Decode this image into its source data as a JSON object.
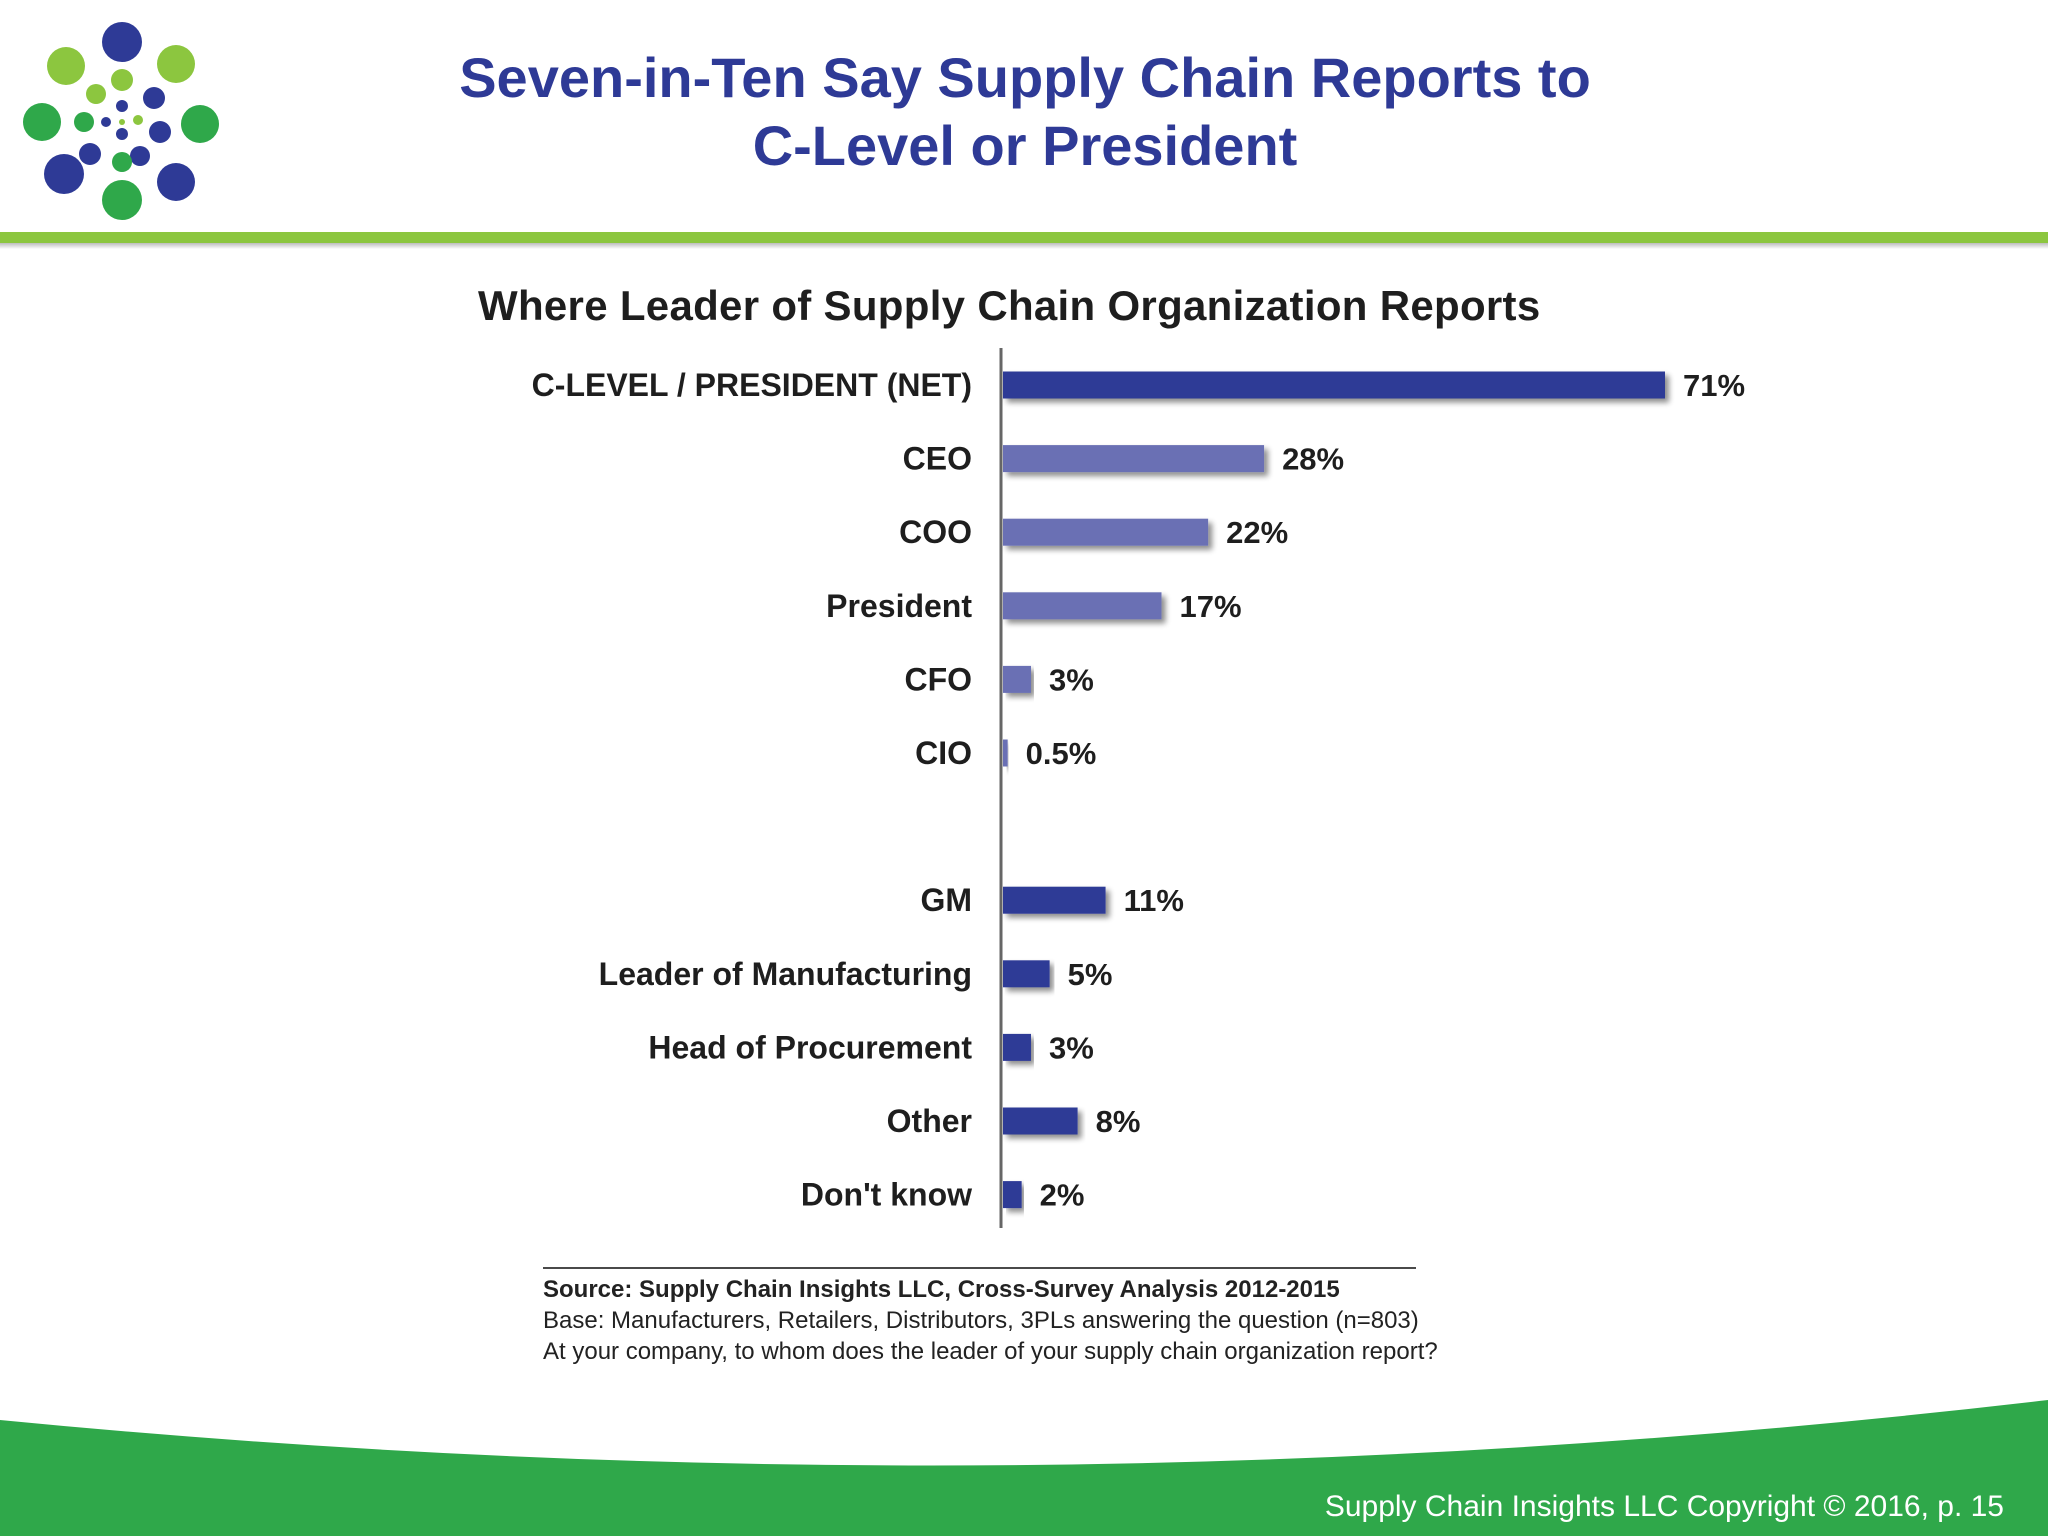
{
  "slide": {
    "title_line1": "Seven-in-Ten Say Supply Chain Reports to",
    "title_line2": "C-Level or President",
    "footer": "Supply Chain Insights LLC Copyright © 2016, p. 15"
  },
  "colors": {
    "title": "#2e3a96",
    "green_rule": "#8cc63f",
    "footer_green": "#2fa84a",
    "bar_dark": "#2e3a96",
    "bar_light": "#6a70b4"
  },
  "chart_data": {
    "type": "bar",
    "orientation": "horizontal",
    "title": "Where Leader of Supply Chain Organization Reports",
    "unit": "%",
    "categories": [
      "C-LEVEL / PRESIDENT (NET)",
      "CEO",
      "COO",
      "President",
      "CFO",
      "CIO",
      "GM",
      "Leader of Manufacturing",
      "Head of Procurement",
      "Other",
      "Don't know"
    ],
    "values": [
      71,
      28,
      22,
      17,
      3,
      0.5,
      11,
      5,
      3,
      8,
      2
    ],
    "value_labels": [
      "71%",
      "28%",
      "22%",
      "17%",
      "3%",
      "0.5%",
      "11%",
      "5%",
      "3%",
      "8%",
      "2%"
    ],
    "groups": [
      "net",
      "sub",
      "sub",
      "sub",
      "sub",
      "sub",
      "other",
      "other",
      "other",
      "other",
      "other"
    ],
    "gap_after_index": 5,
    "xlim": [
      0,
      71
    ],
    "grid": false,
    "legend": "none"
  },
  "source": {
    "line1": "Source:  Supply Chain Insights LLC, Cross-Survey Analysis 2012-2015",
    "line2": "Base:  Manufacturers,  Retailers, Distributors, 3PLs answering the question  (n=803)",
    "line3": "At your company, to whom does the leader of your supply chain organization report?"
  }
}
